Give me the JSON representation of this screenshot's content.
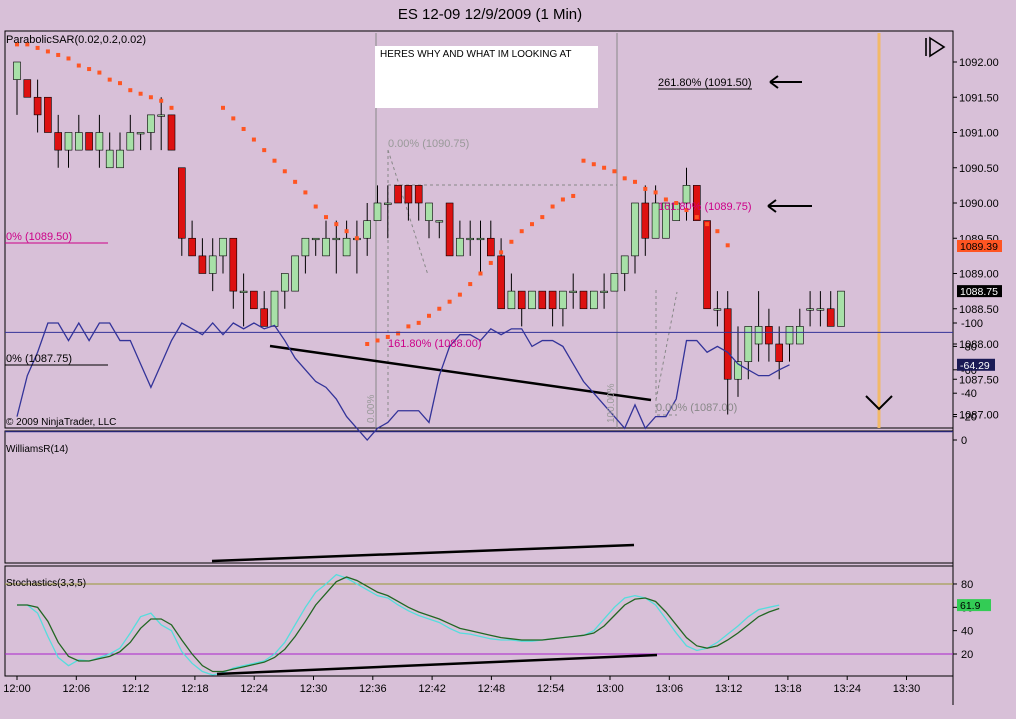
{
  "window_title": "ES 12-09  12/9/2009 (1 Min)",
  "copyright": "© 2009 NinjaTrader, LLC",
  "annotation_box_text": "HERES WHY AND WHAT IM LOOKING AT",
  "colors": {
    "background": "#d8c0d8",
    "up_candle": "#a8e0a8",
    "down_candle": "#dd1111",
    "sar_dot": "#ff5522",
    "williams_line": "#333399",
    "stoch_k": "#55dddd",
    "stoch_d": "#226622",
    "fib_magenta": "#cc0088",
    "last_price_badge": "#000000",
    "sar_badge": "#ff5522"
  },
  "panels": {
    "price": {
      "indicator_label": "ParabolicSAR(0.02,0.2,0.02)",
      "y_ticks": [
        "1092.00",
        "1091.50",
        "1091.00",
        "1090.50",
        "1090.00",
        "1089.50",
        "1089.00",
        "1088.50",
        "1088.00",
        "1087.50",
        "1087.00"
      ],
      "last_price": "1088.75",
      "sar_value": "1089.39"
    },
    "williams": {
      "label": "WilliamsR(14)",
      "y_ticks": [
        "0",
        "-20",
        "-40",
        "-60",
        "-80",
        "-100"
      ],
      "current_value": "-64.29"
    },
    "stochastics": {
      "label": "Stochastics(3,3,5)",
      "y_ticks": [
        "80",
        "60",
        "40",
        "20"
      ],
      "current_value": "61.9"
    }
  },
  "fib_labels": {
    "ext_261": "261.80% (1091.50)",
    "ext_161_upper": "161.80% (1089.75)",
    "ext_161_lower": "161.80% (1088.00)",
    "zero_1090_75": "0.00% (1090.75)",
    "zero_1087_00": "0.00% (1087.00)",
    "left_0_1089_50": "0% (1089.50)",
    "left_0_1087_75": "0% (1087.75)",
    "vertical_0": "0.00%",
    "vertical_100": "100.00%"
  },
  "chart_data": [
    {
      "type": "candlestick",
      "title": "ES 12-09  12/9/2009 (1 Min)",
      "x_ticks": [
        "12:00",
        "12:06",
        "12:12",
        "12:18",
        "12:24",
        "12:30",
        "12:36",
        "12:42",
        "12:48",
        "12:54",
        "13:00",
        "13:06",
        "13:12",
        "13:18",
        "13:24",
        "13:30"
      ],
      "ylim": [
        1086.9,
        1092.4
      ],
      "candles": [
        {
          "o": 1091.75,
          "h": 1092.0,
          "l": 1091.25,
          "c": 1092.0
        },
        {
          "o": 1091.75,
          "h": 1091.75,
          "l": 1091.5,
          "c": 1091.5
        },
        {
          "o": 1091.5,
          "h": 1091.75,
          "l": 1091.0,
          "c": 1091.25
        },
        {
          "o": 1091.5,
          "h": 1091.5,
          "l": 1091.0,
          "c": 1091.0
        },
        {
          "o": 1091.0,
          "h": 1091.25,
          "l": 1090.5,
          "c": 1090.75
        },
        {
          "o": 1090.75,
          "h": 1091.0,
          "l": 1090.5,
          "c": 1091.0
        },
        {
          "o": 1090.75,
          "h": 1091.25,
          "l": 1090.75,
          "c": 1091.0
        },
        {
          "o": 1091.0,
          "h": 1091.0,
          "l": 1090.75,
          "c": 1090.75
        },
        {
          "o": 1090.75,
          "h": 1091.25,
          "l": 1090.5,
          "c": 1091.0
        },
        {
          "o": 1090.5,
          "h": 1091.0,
          "l": 1090.5,
          "c": 1090.75
        },
        {
          "o": 1090.5,
          "h": 1091.0,
          "l": 1090.5,
          "c": 1090.75
        },
        {
          "o": 1090.75,
          "h": 1091.25,
          "l": 1090.75,
          "c": 1091.0
        },
        {
          "o": 1091.0,
          "h": 1091.0,
          "l": 1090.75,
          "c": 1091.0
        },
        {
          "o": 1091.0,
          "h": 1091.25,
          "l": 1090.75,
          "c": 1091.25
        },
        {
          "o": 1091.25,
          "h": 1091.5,
          "l": 1090.75,
          "c": 1091.25
        },
        {
          "o": 1091.25,
          "h": 1091.25,
          "l": 1090.75,
          "c": 1090.75
        },
        {
          "o": 1090.5,
          "h": 1090.5,
          "l": 1089.25,
          "c": 1089.5
        },
        {
          "o": 1089.5,
          "h": 1089.75,
          "l": 1089.25,
          "c": 1089.25
        },
        {
          "o": 1089.25,
          "h": 1089.5,
          "l": 1089.0,
          "c": 1089.0
        },
        {
          "o": 1089.0,
          "h": 1089.5,
          "l": 1088.75,
          "c": 1089.25
        },
        {
          "o": 1089.25,
          "h": 1089.5,
          "l": 1089.0,
          "c": 1089.5
        },
        {
          "o": 1089.5,
          "h": 1089.5,
          "l": 1088.5,
          "c": 1088.75
        },
        {
          "o": 1088.75,
          "h": 1089.0,
          "l": 1088.25,
          "c": 1088.75
        },
        {
          "o": 1088.75,
          "h": 1088.75,
          "l": 1088.5,
          "c": 1088.5
        },
        {
          "o": 1088.5,
          "h": 1088.75,
          "l": 1088.25,
          "c": 1088.25
        },
        {
          "o": 1088.25,
          "h": 1088.75,
          "l": 1088.25,
          "c": 1088.75
        },
        {
          "o": 1088.75,
          "h": 1089.0,
          "l": 1088.5,
          "c": 1089.0
        },
        {
          "o": 1088.75,
          "h": 1089.25,
          "l": 1088.75,
          "c": 1089.25
        },
        {
          "o": 1089.25,
          "h": 1089.5,
          "l": 1089.0,
          "c": 1089.5
        },
        {
          "o": 1089.5,
          "h": 1089.5,
          "l": 1089.25,
          "c": 1089.5
        },
        {
          "o": 1089.25,
          "h": 1089.75,
          "l": 1089.25,
          "c": 1089.5
        },
        {
          "o": 1089.5,
          "h": 1089.75,
          "l": 1089.0,
          "c": 1089.5
        },
        {
          "o": 1089.25,
          "h": 1089.75,
          "l": 1089.25,
          "c": 1089.5
        },
        {
          "o": 1089.5,
          "h": 1089.75,
          "l": 1089.0,
          "c": 1089.5
        },
        {
          "o": 1089.5,
          "h": 1090.0,
          "l": 1089.25,
          "c": 1089.75
        },
        {
          "o": 1089.75,
          "h": 1090.25,
          "l": 1089.75,
          "c": 1090.0
        },
        {
          "o": 1090.0,
          "h": 1090.25,
          "l": 1089.5,
          "c": 1090.0
        },
        {
          "o": 1090.25,
          "h": 1090.25,
          "l": 1090.0,
          "c": 1090.0
        },
        {
          "o": 1090.25,
          "h": 1090.25,
          "l": 1089.75,
          "c": 1090.0
        },
        {
          "o": 1090.25,
          "h": 1090.25,
          "l": 1089.75,
          "c": 1090.0
        },
        {
          "o": 1089.75,
          "h": 1090.0,
          "l": 1089.5,
          "c": 1090.0
        },
        {
          "o": 1089.75,
          "h": 1089.75,
          "l": 1089.5,
          "c": 1089.75
        },
        {
          "o": 1090.0,
          "h": 1090.0,
          "l": 1089.25,
          "c": 1089.25
        },
        {
          "o": 1089.25,
          "h": 1089.75,
          "l": 1089.25,
          "c": 1089.5
        },
        {
          "o": 1089.5,
          "h": 1089.75,
          "l": 1089.25,
          "c": 1089.5
        },
        {
          "o": 1089.5,
          "h": 1089.75,
          "l": 1089.0,
          "c": 1089.5
        },
        {
          "o": 1089.5,
          "h": 1089.75,
          "l": 1089.25,
          "c": 1089.25
        },
        {
          "o": 1089.25,
          "h": 1089.5,
          "l": 1088.5,
          "c": 1088.5
        },
        {
          "o": 1088.5,
          "h": 1089.0,
          "l": 1088.5,
          "c": 1088.75
        },
        {
          "o": 1088.75,
          "h": 1088.75,
          "l": 1088.25,
          "c": 1088.5
        },
        {
          "o": 1088.5,
          "h": 1088.75,
          "l": 1088.5,
          "c": 1088.75
        },
        {
          "o": 1088.75,
          "h": 1088.75,
          "l": 1088.5,
          "c": 1088.5
        },
        {
          "o": 1088.75,
          "h": 1088.75,
          "l": 1088.25,
          "c": 1088.5
        },
        {
          "o": 1088.5,
          "h": 1088.75,
          "l": 1088.25,
          "c": 1088.75
        },
        {
          "o": 1088.75,
          "h": 1089.0,
          "l": 1088.5,
          "c": 1088.75
        },
        {
          "o": 1088.75,
          "h": 1088.75,
          "l": 1088.5,
          "c": 1088.5
        },
        {
          "o": 1088.5,
          "h": 1088.75,
          "l": 1088.5,
          "c": 1088.75
        },
        {
          "o": 1088.75,
          "h": 1089.0,
          "l": 1088.5,
          "c": 1088.75
        },
        {
          "o": 1088.75,
          "h": 1089.0,
          "l": 1088.75,
          "c": 1089.0
        },
        {
          "o": 1089.0,
          "h": 1089.25,
          "l": 1088.75,
          "c": 1089.25
        },
        {
          "o": 1089.25,
          "h": 1090.0,
          "l": 1089.0,
          "c": 1090.0
        },
        {
          "o": 1090.0,
          "h": 1090.25,
          "l": 1089.25,
          "c": 1089.5
        },
        {
          "o": 1089.5,
          "h": 1090.25,
          "l": 1089.5,
          "c": 1090.0
        },
        {
          "o": 1089.5,
          "h": 1090.0,
          "l": 1089.5,
          "c": 1090.0
        },
        {
          "o": 1089.75,
          "h": 1090.0,
          "l": 1089.75,
          "c": 1090.0
        },
        {
          "o": 1090.0,
          "h": 1090.5,
          "l": 1089.75,
          "c": 1090.25
        },
        {
          "o": 1090.25,
          "h": 1090.25,
          "l": 1089.75,
          "c": 1089.75
        },
        {
          "o": 1089.75,
          "h": 1089.75,
          "l": 1088.5,
          "c": 1088.5
        },
        {
          "o": 1088.5,
          "h": 1088.75,
          "l": 1088.25,
          "c": 1088.5
        },
        {
          "o": 1088.5,
          "h": 1088.75,
          "l": 1087.0,
          "c": 1087.5
        },
        {
          "o": 1087.5,
          "h": 1088.25,
          "l": 1087.25,
          "c": 1087.75
        },
        {
          "o": 1087.75,
          "h": 1088.25,
          "l": 1087.5,
          "c": 1088.25
        },
        {
          "o": 1088.0,
          "h": 1088.75,
          "l": 1087.75,
          "c": 1088.25
        },
        {
          "o": 1088.25,
          "h": 1088.5,
          "l": 1087.75,
          "c": 1088.0
        },
        {
          "o": 1088.0,
          "h": 1088.25,
          "l": 1087.5,
          "c": 1087.75
        },
        {
          "o": 1088.0,
          "h": 1088.25,
          "l": 1087.75,
          "c": 1088.25
        },
        {
          "o": 1088.0,
          "h": 1088.5,
          "l": 1088.0,
          "c": 1088.25
        },
        {
          "o": 1088.5,
          "h": 1088.75,
          "l": 1088.25,
          "c": 1088.5
        },
        {
          "o": 1088.5,
          "h": 1088.75,
          "l": 1088.25,
          "c": 1088.5
        },
        {
          "o": 1088.5,
          "h": 1088.75,
          "l": 1088.25,
          "c": 1088.25
        },
        {
          "o": 1088.25,
          "h": 1088.75,
          "l": 1088.25,
          "c": 1088.75
        }
      ],
      "parabolic_sar": [
        [
          0,
          1092.25
        ],
        [
          1,
          1092.25
        ],
        [
          2,
          1092.2
        ],
        [
          3,
          1092.15
        ],
        [
          4,
          1092.1
        ],
        [
          5,
          1092.05
        ],
        [
          6,
          1091.95
        ],
        [
          7,
          1091.9
        ],
        [
          8,
          1091.85
        ],
        [
          9,
          1091.75
        ],
        [
          10,
          1091.7
        ],
        [
          11,
          1091.6
        ],
        [
          12,
          1091.55
        ],
        [
          13,
          1091.5
        ],
        [
          14,
          1091.45
        ],
        [
          15,
          1091.35
        ],
        [
          20,
          1091.35
        ],
        [
          21,
          1091.2
        ],
        [
          22,
          1091.05
        ],
        [
          23,
          1090.9
        ],
        [
          24,
          1090.75
        ],
        [
          25,
          1090.6
        ],
        [
          26,
          1090.45
        ],
        [
          27,
          1090.3
        ],
        [
          28,
          1090.15
        ],
        [
          29,
          1089.95
        ],
        [
          30,
          1089.8
        ],
        [
          31,
          1089.7
        ],
        [
          32,
          1089.6
        ],
        [
          33,
          1089.5
        ],
        [
          34,
          1088.0
        ],
        [
          35,
          1088.05
        ],
        [
          36,
          1088.1
        ],
        [
          37,
          1088.15
        ],
        [
          38,
          1088.25
        ],
        [
          39,
          1088.3
        ],
        [
          40,
          1088.4
        ],
        [
          41,
          1088.5
        ],
        [
          42,
          1088.6
        ],
        [
          43,
          1088.7
        ],
        [
          44,
          1088.85
        ],
        [
          45,
          1089.0
        ],
        [
          46,
          1089.15
        ],
        [
          47,
          1089.3
        ],
        [
          48,
          1089.45
        ],
        [
          49,
          1089.6
        ],
        [
          50,
          1089.7
        ],
        [
          51,
          1089.8
        ],
        [
          52,
          1089.95
        ],
        [
          53,
          1090.05
        ],
        [
          54,
          1090.1
        ],
        [
          55,
          1090.6
        ],
        [
          56,
          1090.55
        ],
        [
          57,
          1090.5
        ],
        [
          58,
          1090.45
        ],
        [
          59,
          1090.35
        ],
        [
          60,
          1090.3
        ],
        [
          61,
          1090.2
        ],
        [
          62,
          1090.15
        ],
        [
          63,
          1090.05
        ],
        [
          64,
          1090.0
        ],
        [
          65,
          1089.9
        ],
        [
          66,
          1089.8
        ],
        [
          67,
          1089.7
        ],
        [
          68,
          1089.6
        ],
        [
          69,
          1089.4
        ]
      ],
      "sar_breaks": [
        16,
        34,
        55,
        70
      ],
      "last_price": 1088.75,
      "sar_value": 1089.39
    },
    {
      "type": "line",
      "title": "WilliamsR(14)",
      "ylim": [
        -100,
        0
      ],
      "values": [
        -20,
        -55,
        -75,
        -100,
        -100,
        -85,
        -100,
        -85,
        -100,
        -100,
        -85,
        -85,
        -65,
        -45,
        -65,
        -85,
        -100,
        -95,
        -90,
        -100,
        -90,
        -100,
        -95,
        -100,
        -95,
        -98,
        -85,
        -70,
        -60,
        -50,
        -45,
        -35,
        -20,
        -10,
        0,
        -10,
        -15,
        -25,
        -25,
        -25,
        -15,
        -55,
        -80,
        -90,
        -90,
        -85,
        -95,
        -90,
        -95,
        -95,
        -80,
        -85,
        -85,
        -80,
        -65,
        -50,
        -40,
        -30,
        -20,
        -10,
        -30,
        -10,
        -20,
        -20,
        -35,
        -85,
        -85,
        -75,
        -80,
        -75,
        -65,
        -60,
        -55,
        -55,
        -60,
        -64.29
      ],
      "last_value": -64.29
    },
    {
      "type": "line",
      "title": "Stochastics(3,3,5)",
      "ylim": [
        0,
        100
      ],
      "series": [
        {
          "values": [
            62,
            62,
            55,
            35,
            17,
            10,
            15,
            14,
            17,
            20,
            25,
            38,
            52,
            55,
            45,
            40,
            22,
            12,
            5,
            2,
            4,
            8,
            10,
            12,
            14,
            20,
            30,
            45,
            60,
            73,
            80,
            88,
            85,
            80,
            75,
            70,
            68,
            62,
            57,
            53,
            50,
            47,
            42,
            38,
            37,
            35,
            33,
            32,
            32,
            31,
            31,
            32,
            33,
            34,
            35,
            36,
            40,
            50,
            60,
            68,
            70,
            68,
            62,
            50,
            38,
            27,
            23,
            25,
            30,
            37,
            44,
            52,
            58,
            60,
            61.9
          ]
        },
        {
          "values": [
            62,
            62,
            60,
            48,
            30,
            18,
            14,
            14,
            16,
            18,
            22,
            30,
            42,
            50,
            50,
            45,
            32,
            20,
            10,
            5,
            5,
            7,
            9,
            11,
            13,
            17,
            24,
            35,
            48,
            62,
            72,
            82,
            86,
            83,
            78,
            73,
            70,
            65,
            60,
            56,
            53,
            50,
            46,
            42,
            40,
            38,
            36,
            34,
            33,
            32,
            32,
            32,
            33,
            34,
            35,
            36,
            38,
            44,
            53,
            62,
            67,
            68,
            65,
            56,
            45,
            34,
            27,
            25,
            27,
            32,
            38,
            45,
            52,
            56,
            59
          ]
        }
      ],
      "last_value": 61.9
    }
  ]
}
